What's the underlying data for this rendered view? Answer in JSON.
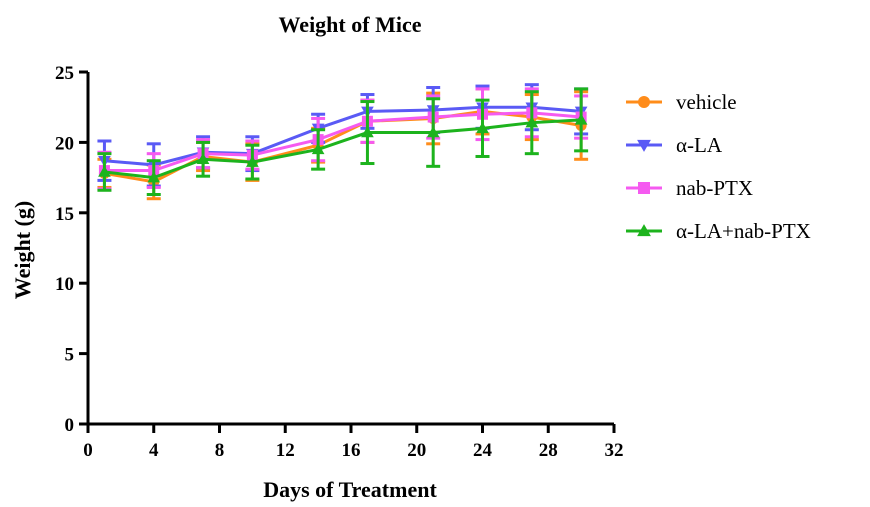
{
  "chart_data": {
    "type": "line",
    "title": "Weight of Mice",
    "xlabel": "Days of Treatment",
    "ylabel": "Weight (g)",
    "xlim": [
      0,
      32
    ],
    "ylim": [
      0,
      25
    ],
    "xticks": [
      0,
      4,
      8,
      12,
      16,
      20,
      24,
      28,
      32
    ],
    "yticks": [
      0,
      5,
      10,
      15,
      20,
      25
    ],
    "x": [
      1,
      4,
      7,
      10,
      14,
      17,
      21,
      24,
      27,
      30
    ],
    "grid": false,
    "legend_position": "right",
    "series": [
      {
        "name": "vehicle",
        "color": "#FF8C1A",
        "marker": "circle",
        "values": [
          17.8,
          17.2,
          19.0,
          18.6,
          19.8,
          21.5,
          21.7,
          22.2,
          21.8,
          21.2
        ],
        "errors": [
          1.0,
          1.2,
          1.0,
          1.3,
          1.2,
          1.5,
          1.8,
          1.6,
          1.6,
          2.4
        ]
      },
      {
        "name": "α-LA",
        "color": "#5A5AF5",
        "marker": "triangle-down",
        "values": [
          18.7,
          18.4,
          19.3,
          19.2,
          21.0,
          22.2,
          22.3,
          22.5,
          22.5,
          22.2
        ],
        "errors": [
          1.4,
          1.5,
          1.1,
          1.2,
          1.0,
          1.2,
          1.6,
          1.5,
          1.6,
          1.6
        ]
      },
      {
        "name": "nab-PTX",
        "color": "#F55AF0",
        "marker": "square",
        "values": [
          18.0,
          18.0,
          19.2,
          19.1,
          20.2,
          21.5,
          21.8,
          22.0,
          22.1,
          21.8
        ],
        "errors": [
          1.3,
          1.2,
          1.0,
          1.0,
          1.5,
          1.5,
          1.5,
          1.8,
          1.7,
          1.5
        ]
      },
      {
        "name": "α-LA+nab-PTX",
        "color": "#1DB31D",
        "marker": "triangle-up",
        "values": [
          17.9,
          17.5,
          18.8,
          18.6,
          19.5,
          20.7,
          20.7,
          21.0,
          21.4,
          21.6
        ],
        "errors": [
          1.3,
          1.2,
          1.2,
          1.2,
          1.4,
          2.2,
          2.4,
          2.0,
          2.2,
          2.2
        ]
      }
    ]
  }
}
